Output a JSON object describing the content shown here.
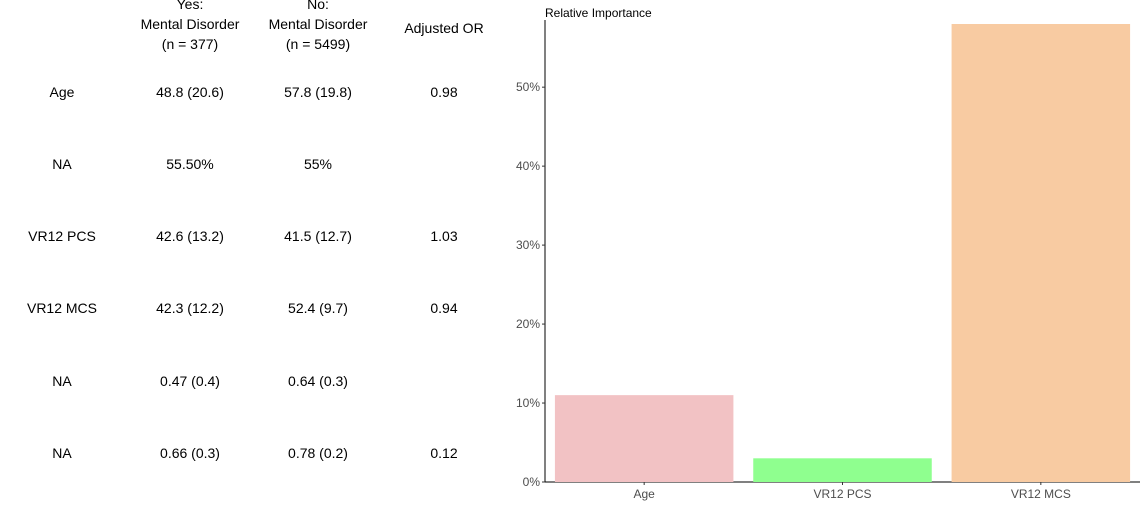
{
  "table": {
    "headers": [
      {
        "lines": [
          ""
        ]
      },
      {
        "lines": [
          "Yes:",
          "Mental Disorder",
          "(n = 377)"
        ]
      },
      {
        "lines": [
          "No:",
          "Mental Disorder",
          "(n = 5499)"
        ]
      },
      {
        "lines": [
          "Adjusted OR"
        ]
      }
    ],
    "rows": [
      [
        "Age",
        "48.8 (20.6)",
        "57.8 (19.8)",
        "0.98"
      ],
      [
        "NA",
        "55.50%",
        "55%",
        ""
      ],
      [
        "VR12 PCS",
        "42.6 (13.2)",
        "41.5 (12.7)",
        "1.03"
      ],
      [
        "VR12 MCS",
        "42.3 (12.2)",
        "52.4 (9.7)",
        "0.94"
      ],
      [
        "NA",
        "0.47 (0.4)",
        "0.64 (0.3)",
        ""
      ],
      [
        "NA",
        "0.66 (0.3)",
        "0.78 (0.2)",
        "0.12"
      ]
    ]
  },
  "chart_data": {
    "type": "bar",
    "title": "Relative Importance",
    "categories": [
      "Age",
      "VR12 PCS",
      "VR12 MCS"
    ],
    "values": [
      11,
      3,
      58
    ],
    "colors": [
      "#F2C2C4",
      "#8FFF8F",
      "#F8CBA2"
    ],
    "yticks": [
      0,
      10,
      20,
      30,
      40,
      50
    ],
    "ytick_labels": [
      "0%",
      "10%",
      "20%",
      "30%",
      "40%",
      "50%"
    ],
    "ylim": [
      0,
      58
    ],
    "xlabel": "",
    "ylabel": "",
    "grid": false,
    "legend": "none"
  }
}
